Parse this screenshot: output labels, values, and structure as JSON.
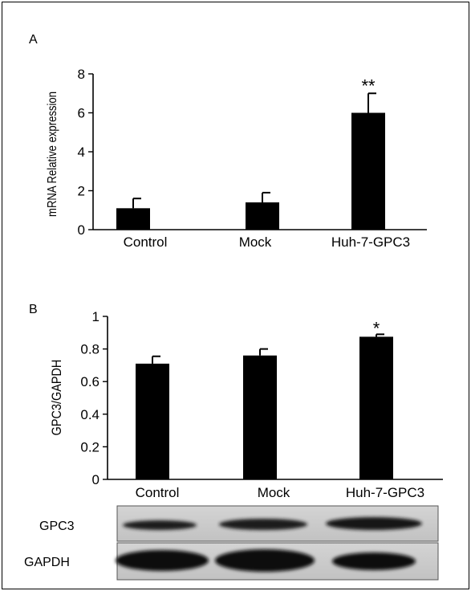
{
  "chart_data": [
    {
      "type": "bar",
      "panel_label": "A",
      "categories": [
        "Control",
        "Mock",
        "Huh-7-GPC3"
      ],
      "values": [
        1.1,
        1.4,
        6.0
      ],
      "errors": [
        0.5,
        0.5,
        1.0
      ],
      "significance": [
        "",
        "",
        "**"
      ],
      "ylabel": "mRNA Relative expression",
      "ylim": [
        0,
        8
      ],
      "yticks": [
        "0",
        "2",
        "4",
        "6",
        "8"
      ],
      "ytick_values": [
        0,
        2,
        4,
        6,
        8
      ],
      "grid": false,
      "bar_color": "#000000"
    },
    {
      "type": "bar",
      "panel_label": "B",
      "categories": [
        "Control",
        "Mock",
        "Huh-7-GPC3"
      ],
      "values": [
        0.71,
        0.76,
        0.875
      ],
      "errors": [
        0.045,
        0.04,
        0.015
      ],
      "significance": [
        "",
        "",
        "*"
      ],
      "ylabel": "GPC3/GAPDH",
      "ylim": [
        0,
        1
      ],
      "yticks": [
        "0",
        "0.2",
        "0.4",
        "0.6",
        "0.8",
        "1"
      ],
      "ytick_values": [
        0,
        0.2,
        0.4,
        0.6,
        0.8,
        1
      ],
      "grid": false,
      "bar_color": "#000000"
    }
  ],
  "blot": {
    "rows": [
      {
        "label": "GPC3"
      },
      {
        "label": "GAPDH"
      }
    ]
  }
}
